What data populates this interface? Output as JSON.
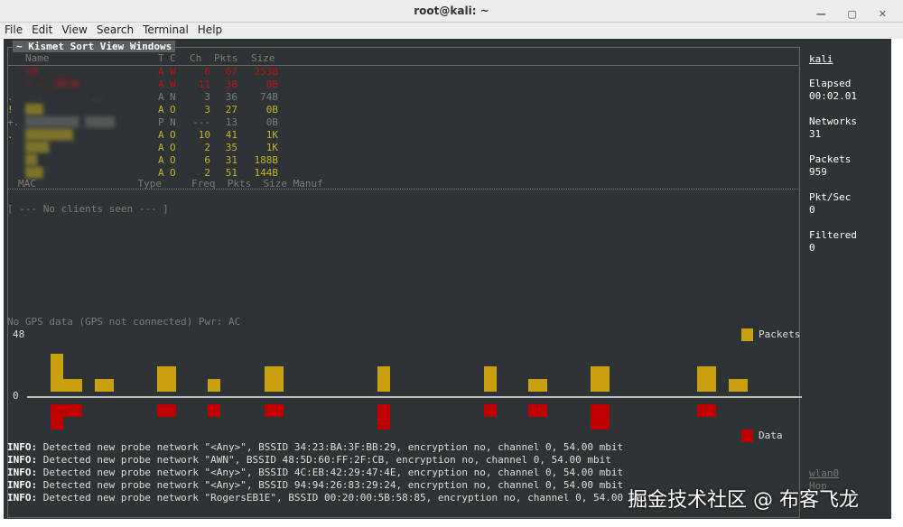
{
  "window": {
    "title": "root@kali: ~",
    "menu": [
      "File",
      "Edit",
      "View",
      "Search",
      "Terminal",
      "Help"
    ]
  },
  "kismet_menu": "~ Kismet Sort View Windows",
  "net_headers": {
    "name": "Name",
    "t": "T",
    "c": "C",
    "ch": "Ch",
    "pkts": "Pkts",
    "size": "Size"
  },
  "networks": [
    {
      "flag": "",
      "name": "<B_ ___",
      "t": "A",
      "c": "W",
      "ch": "6",
      "pkts": "67",
      "size": "253B",
      "color": "red"
    },
    {
      "flag": "",
      "name": "~ ~__0F7B",
      "t": "A",
      "c": "W",
      "ch": "11",
      "pkts": "38",
      "size": "0B",
      "color": "red"
    },
    {
      "flag": ".",
      "name": "  .        ..",
      "t": "A",
      "c": "N",
      "ch": "3",
      "pkts": "36",
      "size": "74B",
      "color": "gry"
    },
    {
      "flag": "!",
      "name": "▒▒▒",
      "t": "A",
      "c": "O",
      "ch": "3",
      "pkts": "27",
      "size": "0B",
      "color": "yel"
    },
    {
      "flag": "+.",
      "name": "▒▒▒▒▒▒▒▒▒ ▒▒▒▒▒",
      "t": "P",
      "c": "N",
      "ch": "---",
      "pkts": "13",
      "size": "0B",
      "color": "gry"
    },
    {
      "flag": ".",
      "name": "▒▒▒▒▒▒▒▒",
      "t": "A",
      "c": "O",
      "ch": "10",
      "pkts": "41",
      "size": "1K",
      "color": "yel"
    },
    {
      "flag": "",
      "name": "▒▒▒▒",
      "t": "A",
      "c": "O",
      "ch": "2",
      "pkts": "35",
      "size": "1K",
      "color": "yel"
    },
    {
      "flag": "",
      "name": "▒▒",
      "t": "A",
      "c": "O",
      "ch": "6",
      "pkts": "31",
      "size": "188B",
      "color": "yel"
    },
    {
      "flag": "",
      "name": "▒▒▒",
      "t": "A",
      "c": "O",
      "ch": "2",
      "pkts": "51",
      "size": "144B",
      "color": "yel"
    }
  ],
  "client_headers": "MAC                 Type     Freq  Pkts  Size Manuf",
  "no_clients": "[ --- No clients seen --- ]",
  "gps_status": "No GPS data (GPS not connected) Pwr: AC",
  "graph": {
    "y_max_label": "48",
    "y_zero_label": "0",
    "legend_packets": "Packets",
    "legend_data": "Data",
    "packets_color": "#c8a010",
    "data_color": "#c00000",
    "bars": [
      {
        "p": [
          3,
          1
        ],
        "d": [
          3,
          2
        ]
      },
      {
        "p": [
          1
        ]
      },
      {
        "p": [
          2
        ],
        "d": [
          2
        ]
      },
      {
        "p": [
          1
        ],
        "d": [
          2
        ]
      },
      {
        "p": [
          2
        ],
        "d": [
          2
        ]
      },
      {
        "p": [
          2
        ],
        "d": [
          3
        ]
      },
      {
        "p": [
          2
        ],
        "d": [
          2
        ]
      },
      {
        "p": [
          1
        ],
        "d": [
          2
        ]
      },
      {
        "p": [
          2
        ],
        "d": [
          3
        ]
      },
      {
        "p": [
          2
        ],
        "d": [
          2
        ]
      },
      {
        "p": [
          1
        ]
      }
    ]
  },
  "sidebar": {
    "host": "kali",
    "elapsed_label": "Elapsed",
    "elapsed": "00:02.01",
    "networks_label": "Networks",
    "networks": "31",
    "packets_label": "Packets",
    "packets": "959",
    "pktsec_label": "Pkt/Sec",
    "pktsec": "0",
    "filtered_label": "Filtered",
    "filtered": "0",
    "iface": "wlan0",
    "hop": "Hop"
  },
  "log": [
    "Detected new probe network \"<Any>\", BSSID 34:23:BA:3F:BB:29, encryption no, channel 0, 54.00 mbit",
    "Detected new probe network \"AWN\", BSSID 48:5D:60:FF:2F:CB, encryption no, channel 0, 54.00 mbit",
    "Detected new probe network \"<Any>\", BSSID 4C:EB:42:29:47:4E, encryption no, channel 0, 54.00 mbit",
    "Detected new probe network \"<Any>\", BSSID 94:94:26:83:29:24, encryption no, channel 0, 54.00 mbit",
    "Detected new probe network \"RogersEB1E\", BSSID 00:20:00:5B:58:85, encryption no, channel 0, 54.00 mbit"
  ],
  "log_prefix": "INFO:",
  "watermark": "掘金技术社区 @ 布客飞龙"
}
